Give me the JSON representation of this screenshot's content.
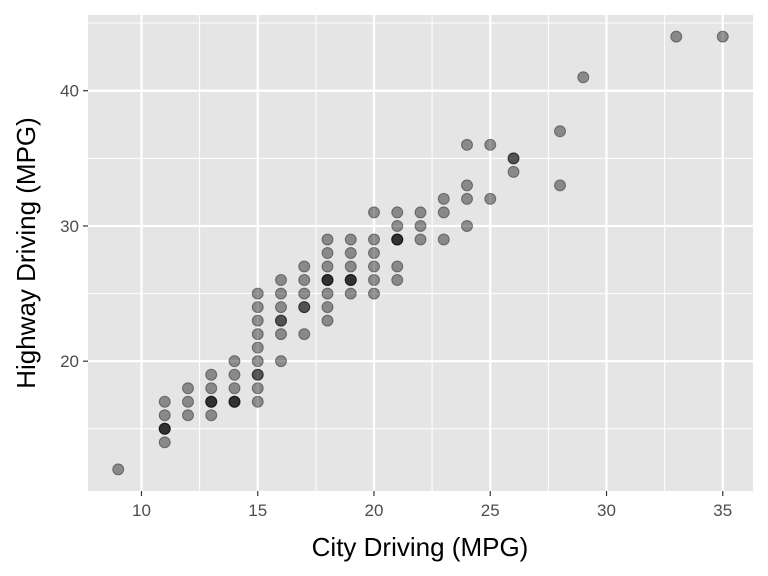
{
  "chart_data": {
    "type": "scatter",
    "title": "",
    "xlabel": "City Driving (MPG)",
    "ylabel": "Highway Driving (MPG)",
    "xlim": [
      7.7,
      36.3
    ],
    "ylim": [
      10.4,
      45.6
    ],
    "x_ticks": [
      10,
      15,
      20,
      25,
      30,
      35
    ],
    "x_tick_labels": [
      "10",
      "15",
      "20",
      "25",
      "30",
      "35"
    ],
    "y_ticks": [
      20,
      30,
      40
    ],
    "y_tick_labels": [
      "20",
      "30",
      "40"
    ],
    "grid": true,
    "legend": "none",
    "colors": {
      "panel_background": "#e5e5e5",
      "grid_line": "#ffffff",
      "point": "#000000",
      "point_alpha": 0.4
    },
    "series": [
      {
        "points": [
          [
            9,
            12
          ],
          [
            11,
            14
          ],
          [
            11,
            15
          ],
          [
            11,
            15
          ],
          [
            11,
            15
          ],
          [
            11,
            16
          ],
          [
            11,
            17
          ],
          [
            12,
            16
          ],
          [
            12,
            17
          ],
          [
            12,
            18
          ],
          [
            13,
            16
          ],
          [
            13,
            17
          ],
          [
            13,
            17
          ],
          [
            13,
            17
          ],
          [
            13,
            18
          ],
          [
            13,
            19
          ],
          [
            14,
            17
          ],
          [
            14,
            17
          ],
          [
            14,
            17
          ],
          [
            14,
            18
          ],
          [
            14,
            19
          ],
          [
            14,
            20
          ],
          [
            15,
            17
          ],
          [
            15,
            18
          ],
          [
            15,
            19
          ],
          [
            15,
            19
          ],
          [
            15,
            20
          ],
          [
            15,
            21
          ],
          [
            15,
            22
          ],
          [
            15,
            23
          ],
          [
            15,
            24
          ],
          [
            15,
            25
          ],
          [
            16,
            20
          ],
          [
            16,
            22
          ],
          [
            16,
            23
          ],
          [
            16,
            23
          ],
          [
            16,
            24
          ],
          [
            16,
            25
          ],
          [
            16,
            26
          ],
          [
            17,
            22
          ],
          [
            17,
            24
          ],
          [
            17,
            24
          ],
          [
            17,
            25
          ],
          [
            17,
            26
          ],
          [
            17,
            27
          ],
          [
            18,
            23
          ],
          [
            18,
            24
          ],
          [
            18,
            25
          ],
          [
            18,
            26
          ],
          [
            18,
            26
          ],
          [
            18,
            26
          ],
          [
            18,
            27
          ],
          [
            18,
            28
          ],
          [
            18,
            29
          ],
          [
            19,
            25
          ],
          [
            19,
            26
          ],
          [
            19,
            26
          ],
          [
            19,
            26
          ],
          [
            19,
            27
          ],
          [
            19,
            28
          ],
          [
            19,
            29
          ],
          [
            20,
            25
          ],
          [
            20,
            26
          ],
          [
            20,
            27
          ],
          [
            20,
            28
          ],
          [
            20,
            29
          ],
          [
            20,
            31
          ],
          [
            21,
            26
          ],
          [
            21,
            27
          ],
          [
            21,
            29
          ],
          [
            21,
            29
          ],
          [
            21,
            29
          ],
          [
            21,
            30
          ],
          [
            21,
            31
          ],
          [
            22,
            29
          ],
          [
            22,
            30
          ],
          [
            22,
            31
          ],
          [
            23,
            29
          ],
          [
            23,
            31
          ],
          [
            23,
            32
          ],
          [
            24,
            30
          ],
          [
            24,
            32
          ],
          [
            24,
            33
          ],
          [
            24,
            36
          ],
          [
            25,
            32
          ],
          [
            25,
            36
          ],
          [
            26,
            34
          ],
          [
            26,
            35
          ],
          [
            26,
            35
          ],
          [
            28,
            33
          ],
          [
            28,
            37
          ],
          [
            29,
            41
          ],
          [
            33,
            44
          ],
          [
            35,
            44
          ]
        ]
      }
    ]
  }
}
